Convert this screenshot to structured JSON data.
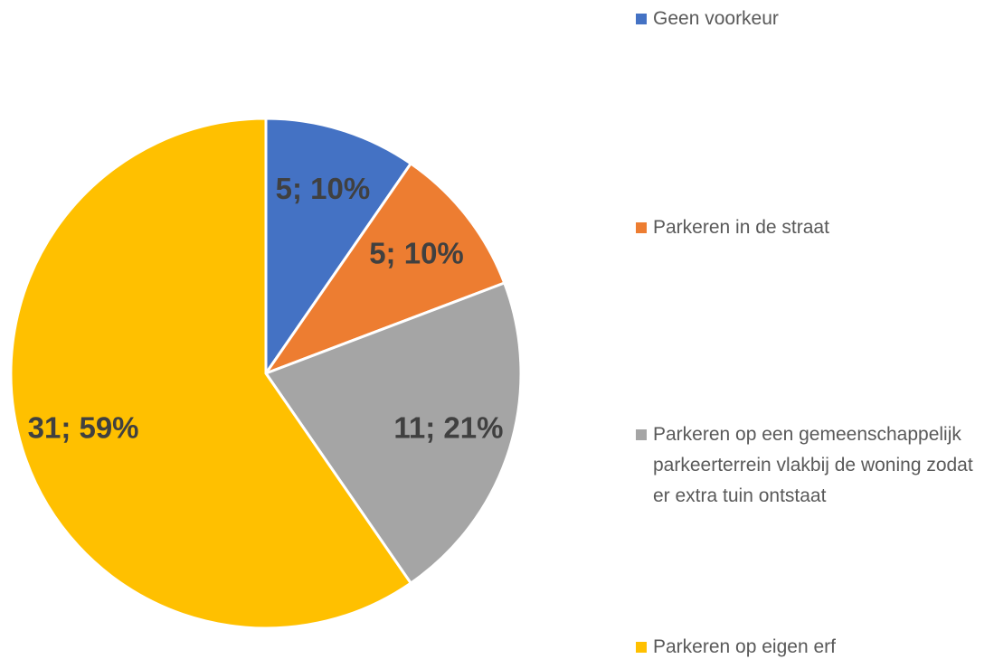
{
  "chart_data": {
    "type": "pie",
    "categories": [
      "Geen voorkeur",
      "Parkeren in de straat",
      "Parkeren op een gemeenschappelijk parkeerterrein vlakbij de woning zodat er extra tuin ontstaat",
      "Parkeren op eigen erf"
    ],
    "values": [
      5,
      5,
      11,
      31
    ],
    "value_labels": [
      "5; 10%",
      "5; 10%",
      "11; 21%",
      "31; 59%"
    ],
    "colors": [
      "#4472c4",
      "#ed7d31",
      "#a5a5a5",
      "#ffc000"
    ],
    "legend": "right"
  }
}
